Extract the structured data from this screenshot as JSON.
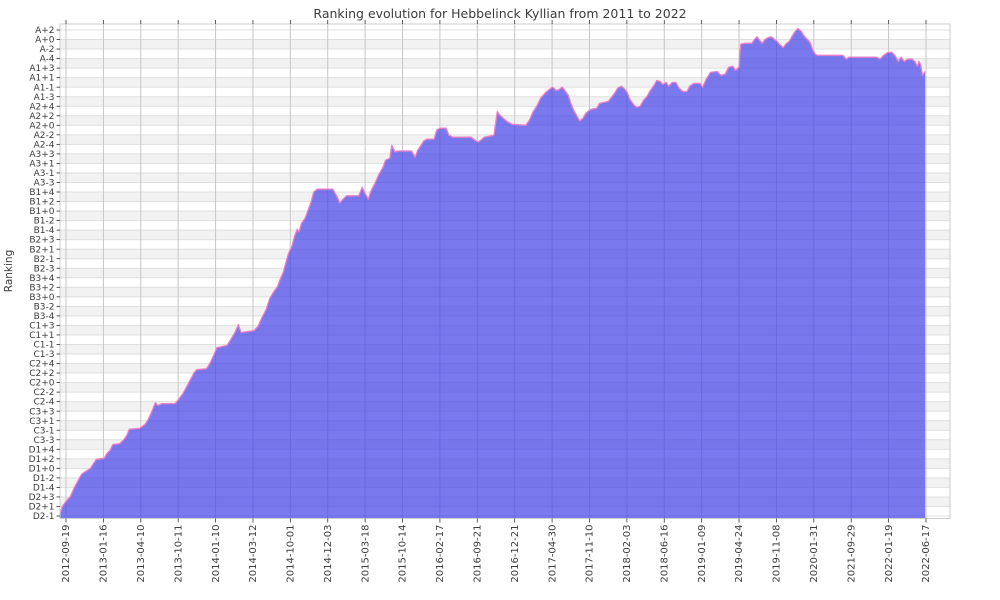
{
  "chart_data": {
    "type": "area",
    "title": "Ranking evolution for Hebbelinck Kyllian from 2011 to 2022",
    "xlabel": "",
    "ylabel": "Ranking",
    "legend": "none",
    "grid": true,
    "background_bands": true,
    "x_tick_labels": [
      "2012-09-19",
      "2013-01-16",
      "2013-04-10",
      "2013-10-11",
      "2014-01-10",
      "2014-03-12",
      "2014-10-01",
      "2014-12-03",
      "2015-03-18",
      "2015-10-14",
      "2016-02-17",
      "2016-09-21",
      "2016-12-21",
      "2017-04-30",
      "2017-11-10",
      "2018-02-03",
      "2018-06-16",
      "2019-01-09",
      "2019-04-24",
      "2019-11-08",
      "2020-01-31",
      "2021-09-29",
      "2022-01-19",
      "2022-06-17"
    ],
    "y_tick_labels_top_to_bottom": [
      "A+2",
      "A+0",
      "A-2",
      "A-4",
      "A1+3",
      "A1+1",
      "A1-1",
      "A1-3",
      "A2+4",
      "A2+2",
      "A2+0",
      "A2-2",
      "A2-4",
      "A3+3",
      "A3+1",
      "A3-1",
      "A3-3",
      "B1+4",
      "B1+2",
      "B1+0",
      "B1-2",
      "B1-4",
      "B2+3",
      "B2+1",
      "B2-1",
      "B2-3",
      "B3+4",
      "B3+2",
      "B3+0",
      "B3-2",
      "B3-4",
      "C1+3",
      "C1+1",
      "C1-1",
      "C1-3",
      "C2+4",
      "C2+2",
      "C2+0",
      "C2-2",
      "C2-4",
      "C3+3",
      "C3+1",
      "C3-1",
      "C3-3",
      "D1+4",
      "D1+2",
      "D1+0",
      "D1-2",
      "D1-4",
      "D2+3",
      "D2+1",
      "D2-1"
    ],
    "y_axis": {
      "levels": 103,
      "levels_per_labeled_tick": 2,
      "bottom_level_label": "D2-1",
      "top_level_label": "A+2"
    },
    "series": [
      {
        "name": "ranking",
        "points_t_level": [
          [
            0.0,
            0.6
          ],
          [
            0.003,
            2.1
          ],
          [
            0.007,
            3.1
          ],
          [
            0.012,
            4.1
          ],
          [
            0.016,
            5.8
          ],
          [
            0.021,
            7.5
          ],
          [
            0.025,
            8.8
          ],
          [
            0.03,
            9.4
          ],
          [
            0.035,
            10.0
          ],
          [
            0.038,
            10.8
          ],
          [
            0.042,
            11.9
          ],
          [
            0.051,
            12.1
          ],
          [
            0.054,
            13.1
          ],
          [
            0.058,
            13.8
          ],
          [
            0.061,
            15.0
          ],
          [
            0.069,
            15.2
          ],
          [
            0.074,
            16.1
          ],
          [
            0.077,
            16.9
          ],
          [
            0.08,
            18.2
          ],
          [
            0.092,
            18.4
          ],
          [
            0.098,
            19.2
          ],
          [
            0.102,
            20.3
          ],
          [
            0.106,
            21.9
          ],
          [
            0.11,
            23.8
          ],
          [
            0.113,
            23.2
          ],
          [
            0.118,
            23.6
          ],
          [
            0.133,
            23.6
          ],
          [
            0.137,
            24.5
          ],
          [
            0.142,
            25.7
          ],
          [
            0.147,
            27.4
          ],
          [
            0.151,
            28.8
          ],
          [
            0.155,
            30.1
          ],
          [
            0.158,
            30.7
          ],
          [
            0.169,
            30.9
          ],
          [
            0.173,
            32.0
          ],
          [
            0.178,
            33.9
          ],
          [
            0.181,
            35.3
          ],
          [
            0.193,
            35.8
          ],
          [
            0.197,
            37.0
          ],
          [
            0.202,
            38.5
          ],
          [
            0.206,
            40.2
          ],
          [
            0.209,
            38.5
          ],
          [
            0.224,
            38.9
          ],
          [
            0.229,
            39.9
          ],
          [
            0.233,
            41.6
          ],
          [
            0.238,
            43.3
          ],
          [
            0.242,
            45.6
          ],
          [
            0.247,
            47.1
          ],
          [
            0.251,
            48.1
          ],
          [
            0.254,
            49.6
          ],
          [
            0.258,
            51.2
          ],
          [
            0.261,
            53.3
          ],
          [
            0.264,
            55.2
          ],
          [
            0.268,
            56.7
          ],
          [
            0.271,
            58.8
          ],
          [
            0.274,
            60.2
          ],
          [
            0.276,
            59.6
          ],
          [
            0.279,
            61.5
          ],
          [
            0.283,
            62.5
          ],
          [
            0.286,
            64.0
          ],
          [
            0.29,
            65.9
          ],
          [
            0.293,
            68.0
          ],
          [
            0.297,
            68.6
          ],
          [
            0.315,
            68.6
          ],
          [
            0.32,
            67.0
          ],
          [
            0.323,
            65.7
          ],
          [
            0.328,
            66.7
          ],
          [
            0.331,
            67.2
          ],
          [
            0.345,
            67.2
          ],
          [
            0.349,
            69.0
          ],
          [
            0.352,
            67.8
          ],
          [
            0.356,
            66.5
          ],
          [
            0.359,
            68.2
          ],
          [
            0.364,
            69.9
          ],
          [
            0.368,
            71.6
          ],
          [
            0.373,
            73.2
          ],
          [
            0.376,
            74.7
          ],
          [
            0.381,
            75.1
          ],
          [
            0.383,
            77.8
          ],
          [
            0.387,
            76.4
          ],
          [
            0.39,
            76.6
          ],
          [
            0.406,
            76.6
          ],
          [
            0.41,
            75.3
          ],
          [
            0.413,
            76.8
          ],
          [
            0.417,
            77.8
          ],
          [
            0.42,
            78.7
          ],
          [
            0.424,
            79.1
          ],
          [
            0.432,
            79.1
          ],
          [
            0.435,
            81.0
          ],
          [
            0.439,
            81.4
          ],
          [
            0.446,
            81.4
          ],
          [
            0.449,
            79.9
          ],
          [
            0.454,
            79.5
          ],
          [
            0.475,
            79.5
          ],
          [
            0.479,
            78.9
          ],
          [
            0.483,
            78.5
          ],
          [
            0.486,
            78.9
          ],
          [
            0.49,
            79.5
          ],
          [
            0.501,
            79.9
          ],
          [
            0.505,
            84.9
          ],
          [
            0.508,
            84.1
          ],
          [
            0.513,
            83.3
          ],
          [
            0.517,
            82.7
          ],
          [
            0.522,
            82.2
          ],
          [
            0.538,
            82.0
          ],
          [
            0.542,
            83.1
          ],
          [
            0.546,
            84.7
          ],
          [
            0.551,
            86.2
          ],
          [
            0.555,
            87.7
          ],
          [
            0.559,
            88.5
          ],
          [
            0.562,
            89.1
          ],
          [
            0.567,
            89.8
          ],
          [
            0.569,
            90.0
          ],
          [
            0.573,
            89.3
          ],
          [
            0.576,
            89.5
          ],
          [
            0.58,
            90.0
          ],
          [
            0.583,
            89.3
          ],
          [
            0.587,
            88.3
          ],
          [
            0.59,
            86.6
          ],
          [
            0.593,
            85.2
          ],
          [
            0.597,
            83.9
          ],
          [
            0.6,
            82.9
          ],
          [
            0.604,
            83.5
          ],
          [
            0.607,
            84.5
          ],
          [
            0.611,
            85.1
          ],
          [
            0.614,
            85.4
          ],
          [
            0.62,
            85.6
          ],
          [
            0.623,
            86.6
          ],
          [
            0.633,
            87.0
          ],
          [
            0.637,
            87.9
          ],
          [
            0.641,
            88.9
          ],
          [
            0.644,
            89.8
          ],
          [
            0.648,
            90.2
          ],
          [
            0.651,
            89.8
          ],
          [
            0.655,
            88.9
          ],
          [
            0.658,
            87.5
          ],
          [
            0.663,
            86.2
          ],
          [
            0.666,
            85.8
          ],
          [
            0.67,
            86.0
          ],
          [
            0.674,
            87.3
          ],
          [
            0.678,
            88.1
          ],
          [
            0.681,
            89.1
          ],
          [
            0.686,
            90.4
          ],
          [
            0.689,
            91.4
          ],
          [
            0.693,
            91.2
          ],
          [
            0.696,
            90.6
          ],
          [
            0.7,
            91.0
          ],
          [
            0.703,
            90.2
          ],
          [
            0.707,
            91.0
          ],
          [
            0.711,
            91.0
          ],
          [
            0.715,
            89.8
          ],
          [
            0.719,
            89.1
          ],
          [
            0.724,
            89.1
          ],
          [
            0.727,
            90.2
          ],
          [
            0.732,
            90.8
          ],
          [
            0.739,
            90.8
          ],
          [
            0.742,
            90.0
          ],
          [
            0.746,
            91.6
          ],
          [
            0.751,
            93.1
          ],
          [
            0.759,
            93.3
          ],
          [
            0.763,
            92.5
          ],
          [
            0.768,
            92.7
          ],
          [
            0.772,
            94.2
          ],
          [
            0.777,
            94.4
          ],
          [
            0.78,
            93.5
          ],
          [
            0.784,
            94.2
          ],
          [
            0.786,
            99.0
          ],
          [
            0.791,
            99.2
          ],
          [
            0.799,
            99.2
          ],
          [
            0.802,
            100.0
          ],
          [
            0.805,
            100.6
          ],
          [
            0.808,
            99.8
          ],
          [
            0.811,
            99.2
          ],
          [
            0.814,
            100.0
          ],
          [
            0.818,
            100.4
          ],
          [
            0.821,
            100.6
          ],
          [
            0.824,
            100.2
          ],
          [
            0.828,
            99.6
          ],
          [
            0.831,
            99.0
          ],
          [
            0.835,
            98.3
          ],
          [
            0.838,
            99.0
          ],
          [
            0.842,
            99.6
          ],
          [
            0.845,
            100.6
          ],
          [
            0.849,
            101.7
          ],
          [
            0.852,
            102.3
          ],
          [
            0.856,
            101.7
          ],
          [
            0.859,
            100.8
          ],
          [
            0.863,
            100.0
          ],
          [
            0.866,
            99.4
          ],
          [
            0.869,
            97.9
          ],
          [
            0.872,
            96.9
          ],
          [
            0.875,
            96.7
          ],
          [
            0.904,
            96.7
          ],
          [
            0.908,
            95.9
          ],
          [
            0.911,
            96.3
          ],
          [
            0.943,
            96.3
          ],
          [
            0.947,
            95.9
          ],
          [
            0.951,
            96.7
          ],
          [
            0.956,
            97.3
          ],
          [
            0.961,
            97.3
          ],
          [
            0.964,
            96.7
          ],
          [
            0.968,
            95.4
          ],
          [
            0.971,
            96.3
          ],
          [
            0.975,
            95.4
          ],
          [
            0.979,
            95.9
          ],
          [
            0.984,
            95.9
          ],
          [
            0.987,
            95.4
          ],
          [
            0.99,
            94.4
          ],
          [
            0.992,
            95.4
          ],
          [
            0.994,
            94.6
          ],
          [
            0.996,
            92.5
          ],
          [
            0.999,
            93.3
          ]
        ]
      }
    ],
    "colors": {
      "area_fill": "#4845e8",
      "area_fill_opacity": 0.72,
      "line": "#ec7fc5",
      "band_gray": "#f2f2f2",
      "hgrid": "#dfdfdf",
      "vgrid": "#c6c6c6",
      "plot_border": "#cccccc",
      "text": "#3c3c3c",
      "tick": "#333333"
    }
  }
}
